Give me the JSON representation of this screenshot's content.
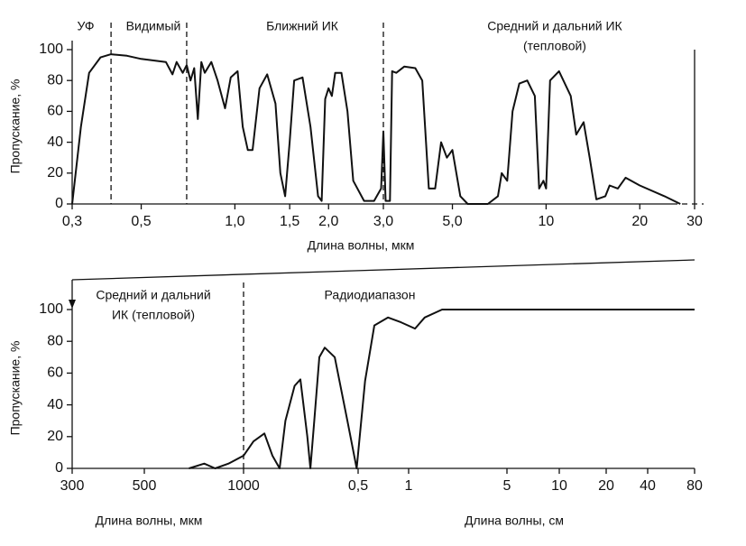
{
  "chart_data": [
    {
      "type": "line",
      "color": "#111111",
      "xscale": "log",
      "ylabel": "Пропускание, %",
      "xlabel": "Длина волны, мкм",
      "annotations": [
        [
          "УФ"
        ],
        [
          "Видимый"
        ],
        [
          "Ближний ИК"
        ],
        [
          "Средний и дальний ИК",
          "(тепловой)"
        ]
      ],
      "boundaries": [
        0.4,
        0.7,
        3.0
      ],
      "xlim": [
        0.3,
        30
      ],
      "ylim": [
        0,
        100
      ],
      "xticks": [
        {
          "value": 0.3,
          "label": "0,3"
        },
        {
          "value": 0.5,
          "label": "0,5"
        },
        {
          "value": 1.0,
          "label": "1,0"
        },
        {
          "value": 1.5,
          "label": "1,5"
        },
        {
          "value": 2.0,
          "label": "2,0"
        },
        {
          "value": 3.0,
          "label": "3,0"
        },
        {
          "value": 5.0,
          "label": "5,0"
        },
        10,
        20,
        30
      ],
      "yticks": [
        0,
        20,
        40,
        60,
        80,
        100
      ],
      "x": [
        0.3,
        0.32,
        0.34,
        0.37,
        0.4,
        0.45,
        0.5,
        0.6,
        0.63,
        0.65,
        0.68,
        0.7,
        0.72,
        0.74,
        0.76,
        0.78,
        0.8,
        0.84,
        0.88,
        0.93,
        0.97,
        1.02,
        1.06,
        1.1,
        1.14,
        1.2,
        1.27,
        1.35,
        1.4,
        1.45,
        1.5,
        1.55,
        1.65,
        1.75,
        1.85,
        1.9,
        1.95,
        2.0,
        2.05,
        2.1,
        2.2,
        2.3,
        2.4,
        2.6,
        2.8,
        2.95,
        3.0,
        3.05,
        3.15,
        3.2,
        3.3,
        3.5,
        3.8,
        4.0,
        4.2,
        4.4,
        4.6,
        4.8,
        5.0,
        5.3,
        5.6,
        6.5,
        7.0,
        7.2,
        7.5,
        7.8,
        8.2,
        8.7,
        9.2,
        9.5,
        9.8,
        10.0,
        10.3,
        11,
        12,
        12.5,
        13.2,
        13.8,
        14.5,
        15.5,
        16,
        17,
        18,
        20,
        24,
        27
      ],
      "values": [
        0,
        50,
        85,
        95,
        97,
        96,
        94,
        92,
        84,
        92,
        85,
        90,
        80,
        88,
        55,
        92,
        85,
        92,
        80,
        62,
        82,
        86,
        50,
        35,
        35,
        75,
        84,
        65,
        20,
        5,
        40,
        80,
        82,
        50,
        5,
        2,
        68,
        75,
        70,
        85,
        85,
        60,
        15,
        2,
        2,
        10,
        47,
        2,
        2,
        86,
        85,
        89,
        88,
        80,
        10,
        10,
        40,
        30,
        35,
        5,
        0,
        0,
        5,
        20,
        15,
        60,
        78,
        80,
        70,
        10,
        15,
        10,
        80,
        86,
        70,
        45,
        53,
        30,
        3,
        5,
        12,
        10,
        17,
        12,
        5,
        0
      ]
    },
    {
      "type": "line",
      "color": "#111111",
      "xscale": "log",
      "ylabel": "Пропускание, %",
      "xlabels": [
        "Длина волны, мкм",
        "Длина волны, см"
      ],
      "annotations": [
        [
          "Средний и дальний",
          "ИК  (тепловой)"
        ],
        [
          "Радиодиапазон"
        ]
      ],
      "boundaries": [
        1000
      ],
      "xlim": [
        300,
        800000
      ],
      "ylim": [
        0,
        100
      ],
      "xticks": [
        300,
        500,
        1000,
        {
          "value": 5000,
          "label": "0,5"
        },
        {
          "value": 10000,
          "label": "1"
        },
        {
          "value": 50000,
          "label": "5"
        },
        {
          "value": 100000,
          "label": "10"
        },
        {
          "value": 200000,
          "label": "20"
        },
        {
          "value": 400000,
          "label": "40"
        },
        {
          "value": 800000,
          "label": "80"
        }
      ],
      "yticks": [
        0,
        20,
        40,
        60,
        80,
        100
      ],
      "x": [
        683,
        760,
        820,
        900,
        1000,
        1150,
        1340,
        1500,
        1660,
        1800,
        2050,
        2221,
        2450,
        2556,
        2700,
        2900,
        3130,
        3600,
        4300,
        4900,
        5500,
        6250,
        7540,
        9000,
        11100,
        13000,
        17300,
        800000
      ],
      "values": [
        0,
        3,
        0,
        3,
        8,
        17,
        22,
        8,
        0,
        30,
        52,
        56,
        20,
        0,
        30,
        70,
        76,
        70,
        30,
        0,
        55,
        90,
        95,
        92,
        88,
        95,
        100,
        100
      ]
    }
  ]
}
